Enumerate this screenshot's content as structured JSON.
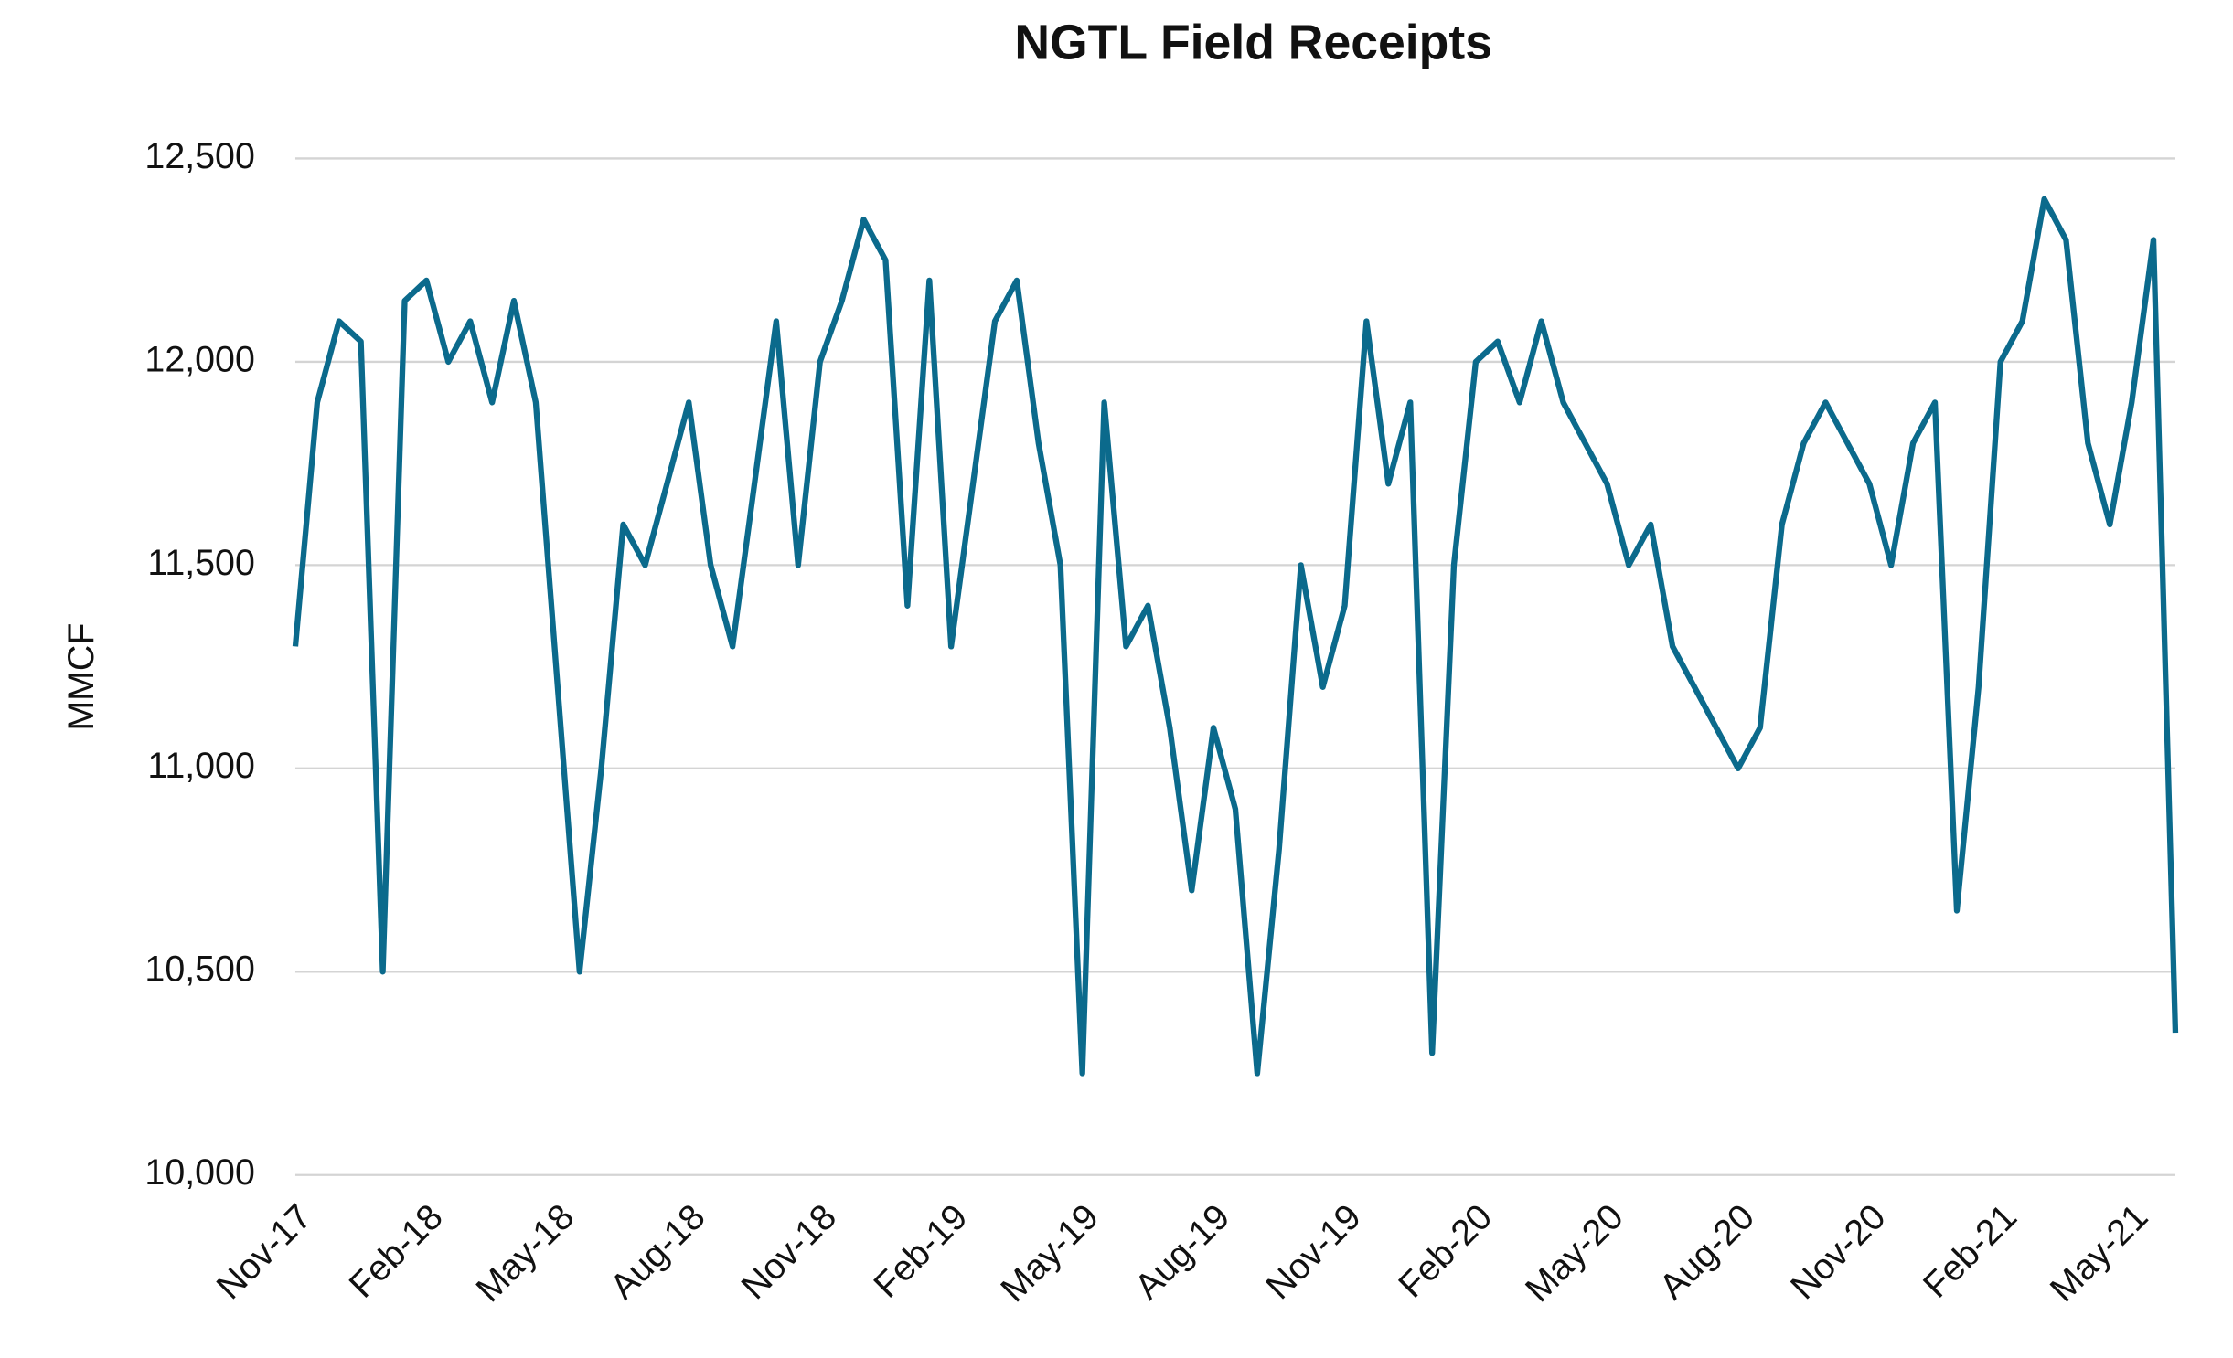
{
  "chart_data": {
    "type": "line",
    "title": "NGTL Field Receipts",
    "y_label": "MMCF",
    "categories": [
      "Nov-17",
      null,
      null,
      null,
      null,
      null,
      "Feb-18",
      null,
      null,
      null,
      null,
      null,
      "May-18",
      null,
      null,
      null,
      null,
      null,
      "Aug-18",
      null,
      null,
      null,
      null,
      null,
      "Nov-18",
      null,
      null,
      null,
      null,
      null,
      "Feb-19",
      null,
      null,
      null,
      null,
      null,
      "May-19",
      null,
      null,
      null,
      null,
      null,
      "Aug-19",
      null,
      null,
      null,
      null,
      null,
      "Nov-19",
      null,
      null,
      null,
      null,
      null,
      "Feb-20",
      null,
      null,
      null,
      null,
      null,
      "May-20",
      null,
      null,
      null,
      null,
      null,
      "Aug-20",
      null,
      null,
      null,
      null,
      null,
      "Nov-20",
      null,
      null,
      null,
      null,
      null,
      "Feb-21",
      null,
      null,
      null,
      null,
      null,
      "May-21",
      null,
      null
    ],
    "series": [
      {
        "name": "NGTL Field Receipts",
        "color": "#0b6a8c",
        "values": [
          11300,
          11900,
          12100,
          12050,
          10500,
          12150,
          12200,
          12000,
          12100,
          11900,
          12150,
          11900,
          11200,
          10500,
          11000,
          11600,
          11500,
          11700,
          11900,
          11500,
          11300,
          11700,
          12100,
          11500,
          12000,
          12150,
          12350,
          12250,
          11400,
          12200,
          11300,
          11700,
          12100,
          12200,
          11800,
          11500,
          10250,
          11900,
          11300,
          11400,
          11100,
          10700,
          11100,
          10900,
          10250,
          10800,
          11500,
          11200,
          11400,
          12100,
          11700,
          11900,
          10300,
          11500,
          12000,
          12050,
          11900,
          12100,
          11900,
          11800,
          11700,
          11500,
          11600,
          11300,
          11200,
          11100,
          11000,
          11100,
          11600,
          11800,
          11900,
          11800,
          11700,
          11500,
          11800,
          11900,
          10650,
          11200,
          12000,
          12100,
          12400,
          12300,
          11800,
          11600,
          11900,
          12300,
          10350
        ]
      }
    ],
    "ylim": [
      10000,
      12500
    ],
    "yticks": [
      {
        "value": 10000,
        "label": "10,000"
      },
      {
        "value": 10500,
        "label": "10,500"
      },
      {
        "value": 11000,
        "label": "11,000"
      },
      {
        "value": 11500,
        "label": "11,500"
      },
      {
        "value": 12000,
        "label": "12,000"
      },
      {
        "value": 12500,
        "label": "12,500"
      }
    ],
    "grid": true
  }
}
